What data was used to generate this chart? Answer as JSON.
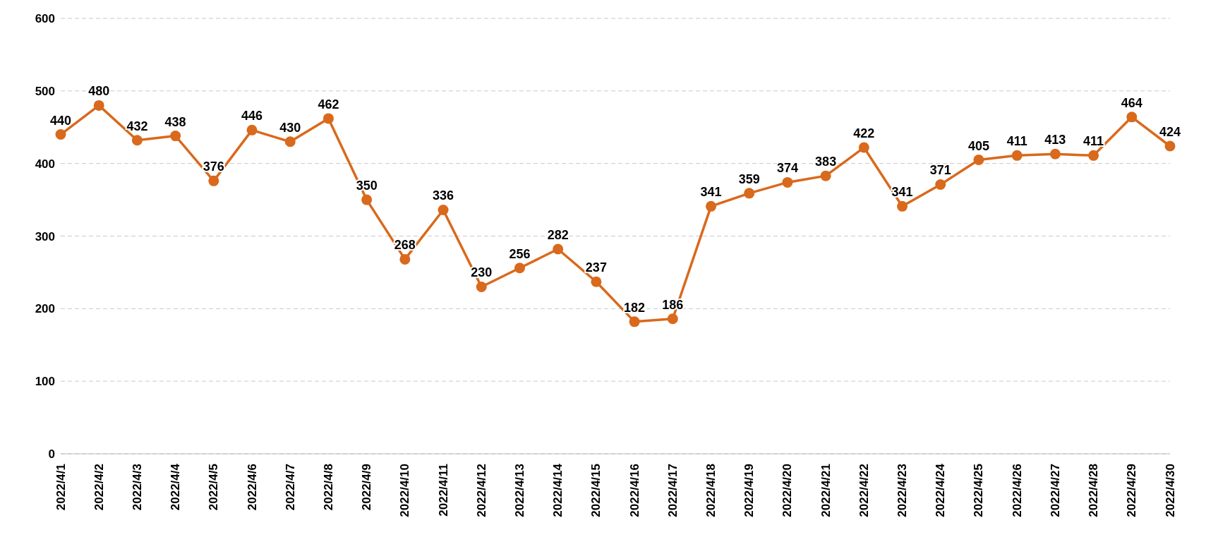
{
  "chart_data": {
    "type": "line",
    "categories": [
      "2022/4/1",
      "2022/4/2",
      "2022/4/3",
      "2022/4/4",
      "2022/4/5",
      "2022/4/6",
      "2022/4/7",
      "2022/4/8",
      "2022/4/9",
      "2022/4/10",
      "2022/4/11",
      "2022/4/12",
      "2022/4/13",
      "2022/4/14",
      "2022/4/15",
      "2022/4/16",
      "2022/4/17",
      "2022/4/18",
      "2022/4/19",
      "2022/4/20",
      "2022/4/21",
      "2022/4/22",
      "2022/4/23",
      "2022/4/24",
      "2022/4/25",
      "2022/4/26",
      "2022/4/27",
      "2022/4/28",
      "2022/4/29",
      "2022/4/30"
    ],
    "series": [
      {
        "color": "#d9691c",
        "values": [
          440,
          480,
          432,
          438,
          376,
          446,
          430,
          462,
          350,
          268,
          336,
          230,
          256,
          282,
          237,
          182,
          186,
          341,
          359,
          374,
          383,
          422,
          341,
          371,
          405,
          411,
          413,
          411,
          464,
          424
        ]
      }
    ],
    "ylim": [
      0,
      600
    ],
    "yticks": [
      0,
      100,
      200,
      300,
      400,
      500,
      600
    ],
    "grid": "y",
    "legend": false,
    "marker": "circle",
    "line_style": "solid",
    "data_labels": true
  }
}
